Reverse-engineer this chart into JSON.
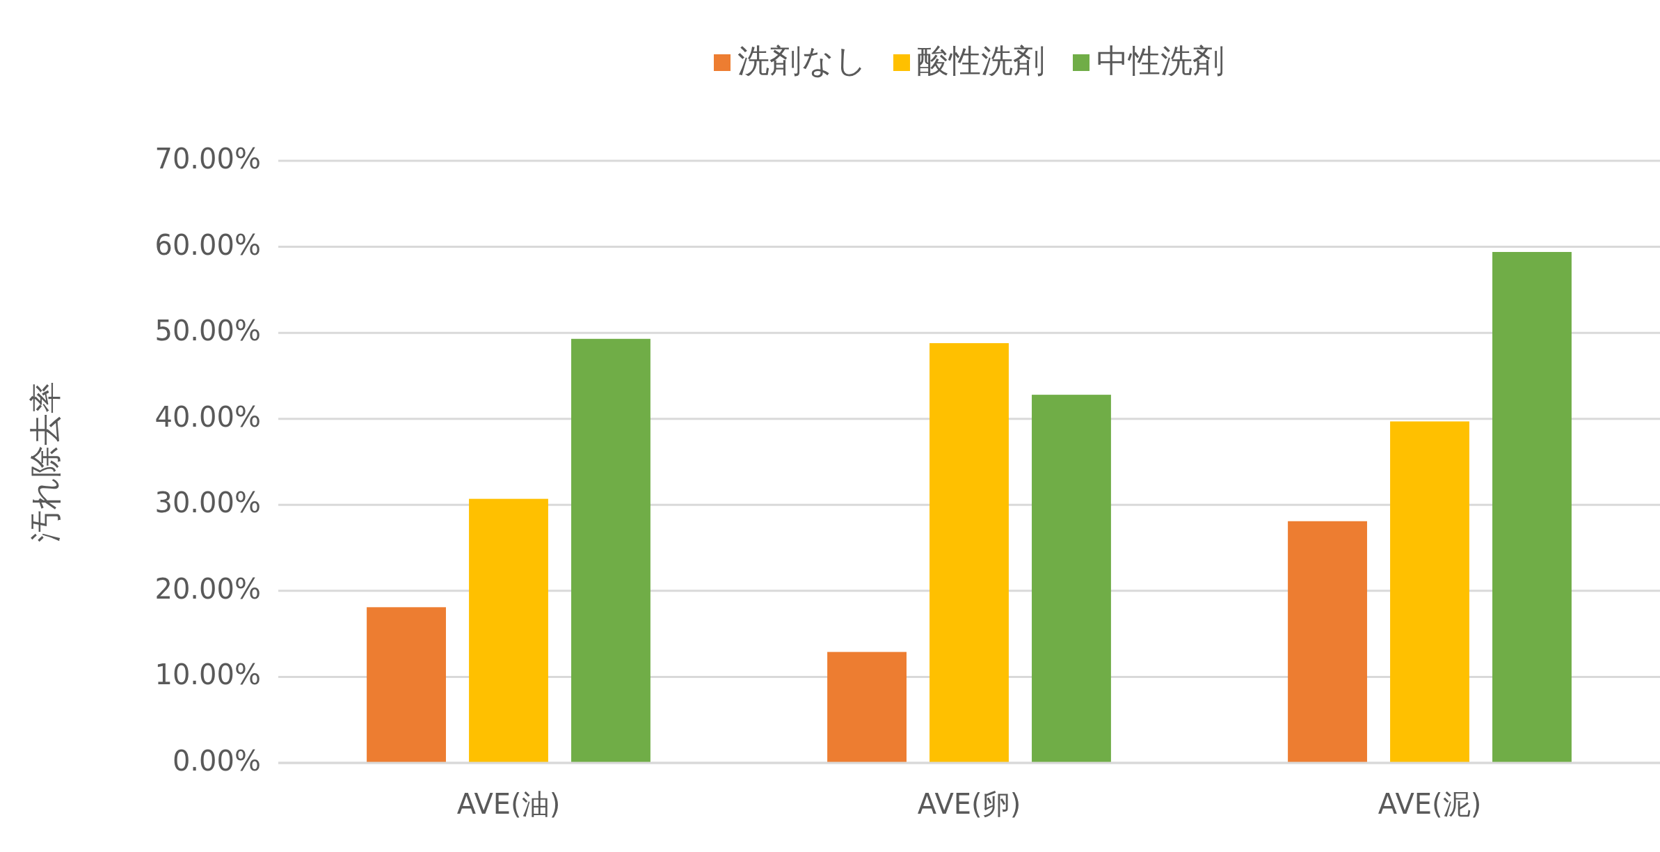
{
  "chart_data": {
    "type": "bar",
    "ylabel": "汚れ除去率",
    "categories": [
      "AVE(油)",
      "AVE(卵)",
      "AVE(泥)"
    ],
    "series": [
      {
        "name": "洗剤なし",
        "color": "#ed7d31",
        "values": [
          18.1,
          12.9,
          28.1
        ]
      },
      {
        "name": "酸性洗剤",
        "color": "#ffc000",
        "values": [
          30.7,
          48.8,
          39.7
        ]
      },
      {
        "name": "中性洗剤",
        "color": "#70ad47",
        "values": [
          49.3,
          42.8,
          59.4
        ]
      }
    ],
    "ylim": [
      0,
      70
    ],
    "yticks": [
      {
        "value": 0,
        "label": "0.00%"
      },
      {
        "value": 10,
        "label": "10.00%"
      },
      {
        "value": 20,
        "label": "20.00%"
      },
      {
        "value": 30,
        "label": "30.00%"
      },
      {
        "value": 40,
        "label": "40.00%"
      },
      {
        "value": 50,
        "label": "50.00%"
      },
      {
        "value": 60,
        "label": "60.00%"
      },
      {
        "value": 70,
        "label": "70.00%"
      }
    ],
    "grid": "y",
    "legend": "top"
  }
}
